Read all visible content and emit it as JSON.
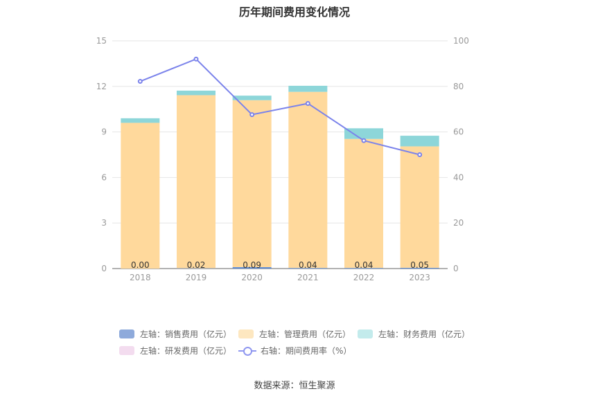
{
  "title": "历年期间费用变化情况",
  "source_label": "数据来源：恒生聚源",
  "legend": [
    {
      "label": "左轴：销售费用（亿元）",
      "color": "#8eaadb"
    },
    {
      "label": "左轴：管理费用（亿元）",
      "color": "#fde7c0"
    },
    {
      "label": "左轴：财务费用（亿元）",
      "color": "#c3ebec"
    },
    {
      "label": "左轴：研发费用（亿元）",
      "color": "#f3dcef"
    },
    {
      "label": "右轴：期间费用率（%）",
      "color": "#8f97f0"
    }
  ],
  "chart_data": {
    "type": "bar",
    "categories": [
      "2018",
      "2019",
      "2020",
      "2021",
      "2022",
      "2023"
    ],
    "series": [
      {
        "name": "左轴：销售费用（亿元）",
        "axis": "left",
        "color": "#5b8bd6",
        "values": [
          0.0,
          0.02,
          0.09,
          0.04,
          0.04,
          0.05
        ],
        "labels": [
          "0.00",
          "0.02",
          "0.09",
          "0.04",
          "0.04",
          "0.05"
        ]
      },
      {
        "name": "左轴：管理费用（亿元）",
        "axis": "left",
        "color": "#ffd99c",
        "values": [
          9.6,
          11.4,
          11.0,
          11.6,
          8.5,
          8.0
        ]
      },
      {
        "name": "左轴：财务费用（亿元）",
        "axis": "left",
        "color": "#8dd6d9",
        "values": [
          0.3,
          0.3,
          0.3,
          0.4,
          0.7,
          0.7
        ]
      },
      {
        "name": "左轴：研发费用（亿元）",
        "axis": "left",
        "color": "#f3dcef",
        "values": [
          0,
          0,
          0,
          0,
          0,
          0
        ]
      },
      {
        "name": "右轴：期间费用率（%）",
        "axis": "right",
        "type": "line",
        "color": "#7b83eb",
        "values": [
          82.2,
          92.0,
          67.6,
          72.5,
          56.2,
          50.0
        ]
      }
    ],
    "y_left": {
      "min": 0,
      "max": 15,
      "ticks": [
        "0",
        "3",
        "6",
        "9",
        "12",
        "15"
      ]
    },
    "y_right": {
      "min": 0,
      "max": 100,
      "ticks": [
        "0",
        "20",
        "40",
        "60",
        "80",
        "100"
      ]
    },
    "grid": true,
    "legend_position": "bottom"
  }
}
